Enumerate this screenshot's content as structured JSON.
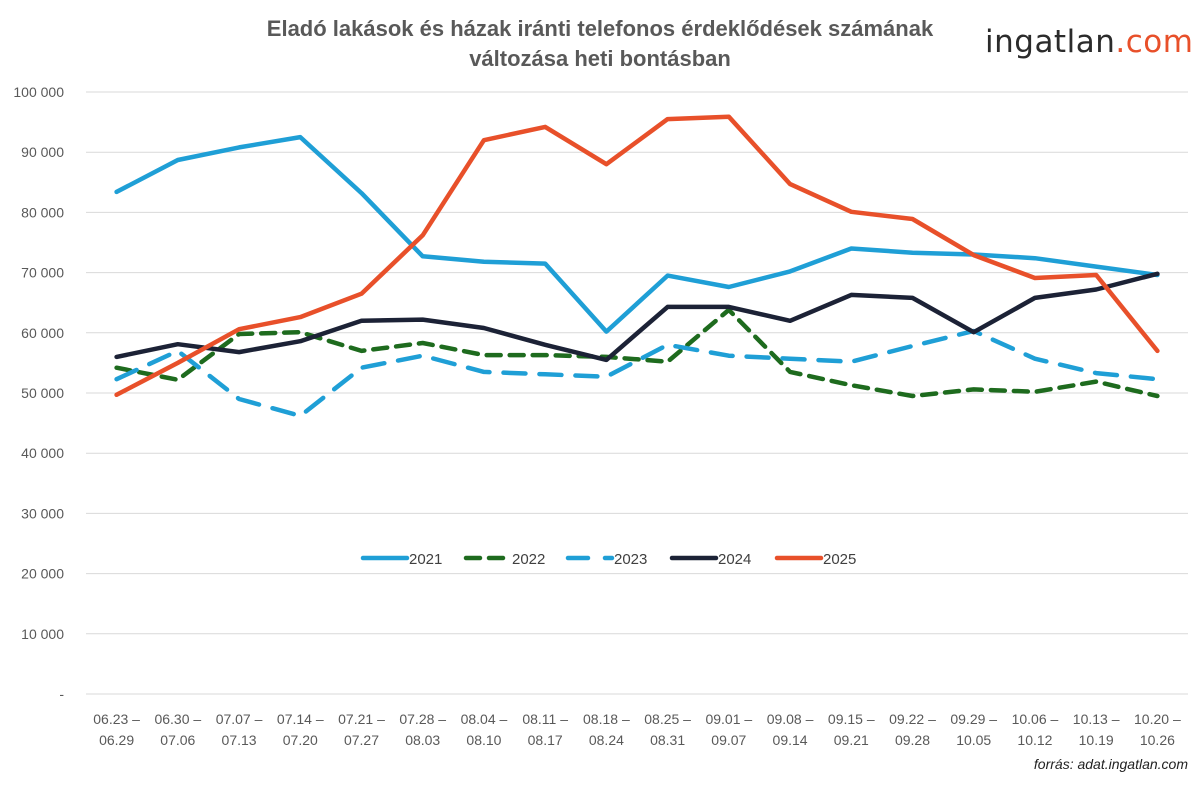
{
  "chart_data": {
    "type": "line",
    "title_line1": "Eladó lakások és házak iránti telefonos érdeklődések számának",
    "title_line2": "változása heti bontásban",
    "xlabel": "",
    "ylabel": "",
    "ylim": [
      0,
      100000
    ],
    "yticks": [
      0,
      10000,
      20000,
      30000,
      40000,
      50000,
      60000,
      70000,
      80000,
      90000,
      100000
    ],
    "ytick_labels": [
      "-",
      "10 000",
      "20 000",
      "30 000",
      "40 000",
      "50 000",
      "60 000",
      "70 000",
      "80 000",
      "90 000",
      "100 000"
    ],
    "grid": true,
    "legend_position": "center",
    "categories": [
      [
        "06.23 –",
        "06.29"
      ],
      [
        "06.30 –",
        "07.06"
      ],
      [
        "07.07 –",
        "07.13"
      ],
      [
        "07.14 –",
        "07.20"
      ],
      [
        "07.21 –",
        "07.27"
      ],
      [
        "07.28 –",
        "08.03"
      ],
      [
        "08.04 –",
        "08.10"
      ],
      [
        "08.11 –",
        "08.17"
      ],
      [
        "08.18 –",
        "08.24"
      ],
      [
        "08.25 –",
        "08.31"
      ],
      [
        "09.01 –",
        "09.07"
      ],
      [
        "09.08 –",
        "09.14"
      ],
      [
        "09.15 –",
        "09.21"
      ],
      [
        "09.22 –",
        "09.28"
      ],
      [
        "09.29 –",
        "10.05"
      ],
      [
        "10.06 –",
        "10.12"
      ],
      [
        "10.13 –",
        "10.19"
      ],
      [
        "10.20 –",
        "10.26"
      ]
    ],
    "series": [
      {
        "name": "2021",
        "color": "#1f9fd6",
        "dash": "solid",
        "values": [
          83400,
          88700,
          90800,
          92500,
          83200,
          72700,
          71800,
          71500,
          60200,
          69500,
          67600,
          70200,
          74000,
          73300,
          73000,
          72400,
          71000,
          69600
        ]
      },
      {
        "name": "2022",
        "color": "#1e6b1e",
        "dash": "dash",
        "values": [
          54200,
          52200,
          59800,
          60100,
          57000,
          58300,
          56300,
          56300,
          56000,
          55200,
          63800,
          53500,
          51300,
          49500,
          50600,
          50200,
          51900,
          49500
        ]
      },
      {
        "name": "2023",
        "color": "#1f9fd6",
        "dash": "longdash",
        "values": [
          52300,
          57000,
          49000,
          46200,
          54200,
          56200,
          53500,
          53100,
          52700,
          58000,
          56200,
          55700,
          55200,
          57800,
          60300,
          55700,
          53300,
          52300
        ]
      },
      {
        "name": "2024",
        "color": "#1c2236",
        "dash": "solid",
        "values": [
          56000,
          58100,
          56800,
          58600,
          62000,
          62200,
          60800,
          58000,
          55500,
          64300,
          64300,
          62000,
          66300,
          65800,
          60100,
          65800,
          67200,
          69800
        ]
      },
      {
        "name": "2025",
        "color": "#e8502a",
        "dash": "solid",
        "values": [
          49700,
          55000,
          60600,
          62600,
          66500,
          76200,
          92000,
          94200,
          88000,
          95500,
          95900,
          84700,
          80100,
          78900,
          72900,
          69100,
          69600,
          57000
        ]
      }
    ]
  },
  "logo": {
    "part1": "ingatlan",
    "part2": ".com"
  },
  "source": "forrás: adat.ingatlan.com"
}
